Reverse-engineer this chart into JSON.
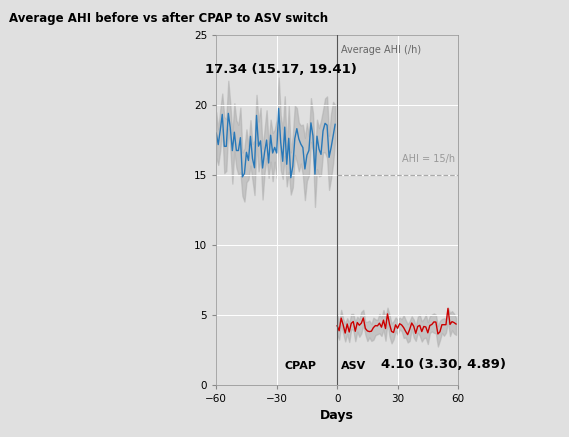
{
  "title": "Average AHI before vs after CPAP to ASV switch",
  "xlabel": "Days",
  "xlim": [
    -60,
    60
  ],
  "ylim": [
    0,
    25
  ],
  "yticks": [
    0,
    5,
    10,
    15,
    20,
    25
  ],
  "xticks": [
    -60,
    -30,
    0,
    30,
    60
  ],
  "cpap_mean": 17.34,
  "cpap_ci_low": 15.17,
  "cpap_ci_high": 19.41,
  "asv_mean": 4.1,
  "asv_ci_low": 3.3,
  "asv_ci_high": 4.89,
  "ahi_threshold": 15,
  "blue_color": "#2878b8",
  "red_color": "#cc0000",
  "gray_ci_color": "#aaaaaa",
  "bg_color": "#e0e0e0",
  "title_bg_color": "#c8c8c8",
  "dashed_line_color": "#aaaaaa",
  "cpap_label": "CPAP",
  "asv_label": "ASV",
  "cpap_annotation": "17.34 (15.17, 19.41)",
  "asv_annotation": "4.10 (3.30, 4.89)",
  "ylabel_label": "Average AHI (/h)",
  "ahi_label": "AHI = 15/h"
}
